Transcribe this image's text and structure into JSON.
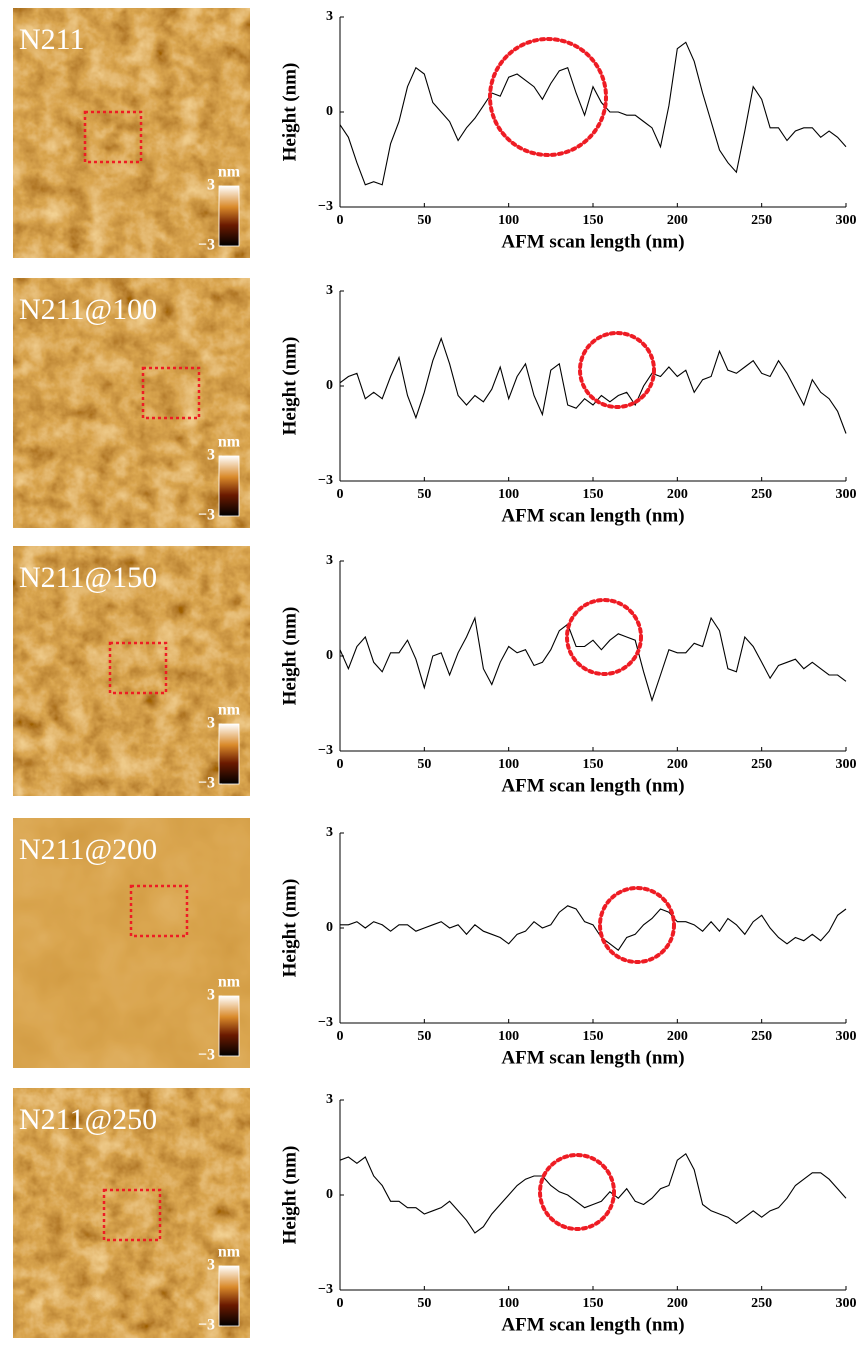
{
  "chart_data": [
    {
      "type": "line",
      "image_label": "N211",
      "colorbar_label": "nm",
      "colorbar_ticks": [
        3,
        {
          "value": -3,
          "label": "−3"
        }
      ],
      "xlabel": "AFM scan length (nm)",
      "ylabel": "Height (nm)",
      "xlim": [
        0,
        300
      ],
      "xticks": [
        0,
        50,
        100,
        150,
        200,
        250,
        300
      ],
      "ylim": [
        -3,
        3
      ],
      "yticks": [
        {
          "value": -3,
          "label": "−3"
        },
        0,
        3
      ],
      "color": "#000000",
      "x": [
        0,
        5,
        10,
        15,
        20,
        25,
        30,
        35,
        40,
        45,
        50,
        55,
        60,
        65,
        70,
        75,
        80,
        85,
        90,
        95,
        100,
        105,
        110,
        115,
        120,
        125,
        130,
        135,
        140,
        145,
        150,
        155,
        160,
        165,
        170,
        175,
        180,
        185,
        190,
        195,
        200,
        205,
        210,
        215,
        220,
        225,
        230,
        235,
        240,
        245,
        250,
        255,
        260,
        265,
        270,
        275,
        280,
        285,
        290,
        295,
        300
      ],
      "values": [
        -0.4,
        -0.8,
        -1.6,
        -2.3,
        -2.2,
        -2.3,
        -1.0,
        -0.3,
        0.8,
        1.4,
        1.2,
        0.3,
        0,
        -0.3,
        -0.9,
        -0.5,
        -0.2,
        0.2,
        0.6,
        0.5,
        1.1,
        1.2,
        1.0,
        0.8,
        0.4,
        0.9,
        1.3,
        1.4,
        0.6,
        -0.1,
        0.8,
        0.3,
        0.0,
        0.0,
        -0.1,
        -0.1,
        -0.3,
        -0.5,
        -1.1,
        0.2,
        2.0,
        2.2,
        1.6,
        0.6,
        -0.3,
        -1.2,
        -1.6,
        -1.9,
        -0.6,
        0.8,
        0.4,
        -0.5,
        -0.5,
        -0.9,
        -0.6,
        -0.5,
        -0.5,
        -0.8,
        -0.6,
        -0.8,
        -1.1
      ]
    },
    {
      "type": "line",
      "image_label": "N211@100",
      "colorbar_label": "nm",
      "colorbar_ticks": [
        3,
        {
          "value": -3,
          "label": "−3"
        }
      ],
      "xlabel": "AFM scan length (nm)",
      "ylabel": "Height (nm)",
      "xlim": [
        0,
        300
      ],
      "xticks": [
        0,
        50,
        100,
        150,
        200,
        250,
        300
      ],
      "ylim": [
        -3,
        3
      ],
      "yticks": [
        {
          "value": -3,
          "label": "−3"
        },
        0,
        3
      ],
      "color": "#000000",
      "x": [
        0,
        5,
        10,
        15,
        20,
        25,
        30,
        35,
        40,
        45,
        50,
        55,
        60,
        65,
        70,
        75,
        80,
        85,
        90,
        95,
        100,
        105,
        110,
        115,
        120,
        125,
        130,
        135,
        140,
        145,
        150,
        155,
        160,
        165,
        170,
        175,
        180,
        185,
        190,
        195,
        200,
        205,
        210,
        215,
        220,
        225,
        230,
        235,
        240,
        245,
        250,
        255,
        260,
        265,
        270,
        275,
        280,
        285,
        290,
        295,
        300
      ],
      "values": [
        0.1,
        0.3,
        0.4,
        -0.4,
        -0.2,
        -0.4,
        0.3,
        0.9,
        -0.3,
        -1.0,
        -0.2,
        0.8,
        1.5,
        0.7,
        -0.3,
        -0.6,
        -0.3,
        -0.5,
        -0.1,
        0.6,
        -0.4,
        0.3,
        0.7,
        -0.3,
        -0.9,
        0.5,
        0.7,
        -0.6,
        -0.7,
        -0.4,
        -0.6,
        -0.3,
        -0.5,
        -0.3,
        -0.2,
        -0.6,
        0.0,
        0.4,
        0.3,
        0.6,
        0.3,
        0.5,
        -0.2,
        0.2,
        0.3,
        1.1,
        0.5,
        0.4,
        0.6,
        0.8,
        0.4,
        0.3,
        0.8,
        0.4,
        -0.1,
        -0.6,
        0.2,
        -0.2,
        -0.4,
        -0.8,
        -1.5
      ]
    },
    {
      "type": "line",
      "image_label": "N211@150",
      "colorbar_label": "nm",
      "colorbar_ticks": [
        3,
        {
          "value": -3,
          "label": "−3"
        }
      ],
      "xlabel": "AFM scan length (nm)",
      "ylabel": "Height (nm)",
      "xlim": [
        0,
        300
      ],
      "xticks": [
        0,
        50,
        100,
        150,
        200,
        250,
        300
      ],
      "ylim": [
        -3,
        3
      ],
      "yticks": [
        {
          "value": -3,
          "label": "−3"
        },
        0,
        3
      ],
      "color": "#000000",
      "x": [
        0,
        5,
        10,
        15,
        20,
        25,
        30,
        35,
        40,
        45,
        50,
        55,
        60,
        65,
        70,
        75,
        80,
        85,
        90,
        95,
        100,
        105,
        110,
        115,
        120,
        125,
        130,
        135,
        140,
        145,
        150,
        155,
        160,
        165,
        170,
        175,
        180,
        185,
        190,
        195,
        200,
        205,
        210,
        215,
        220,
        225,
        230,
        235,
        240,
        245,
        250,
        255,
        260,
        265,
        270,
        275,
        280,
        285,
        290,
        295,
        300
      ],
      "values": [
        0.2,
        -0.4,
        0.3,
        0.6,
        -0.2,
        -0.5,
        0.1,
        0.1,
        0.5,
        -0.1,
        -1.0,
        0.0,
        0.1,
        -0.6,
        0.1,
        0.6,
        1.2,
        -0.4,
        -0.9,
        -0.2,
        0.3,
        0.1,
        0.2,
        -0.3,
        -0.2,
        0.2,
        0.8,
        1.0,
        0.3,
        0.3,
        0.5,
        0.2,
        0.5,
        0.7,
        0.6,
        0.5,
        -0.5,
        -1.4,
        -0.6,
        0.2,
        0.1,
        0.1,
        0.4,
        0.3,
        1.2,
        0.8,
        -0.4,
        -0.5,
        0.6,
        0.3,
        -0.2,
        -0.7,
        -0.3,
        -0.2,
        -0.1,
        -0.4,
        -0.2,
        -0.4,
        -0.6,
        -0.6,
        -0.8
      ]
    },
    {
      "type": "line",
      "image_label": "N211@200",
      "colorbar_label": "nm",
      "colorbar_ticks": [
        3,
        {
          "value": -3,
          "label": "−3"
        }
      ],
      "xlabel": "AFM scan length (nm)",
      "ylabel": "Height (nm)",
      "xlim": [
        0,
        300
      ],
      "xticks": [
        0,
        50,
        100,
        150,
        200,
        250,
        300
      ],
      "ylim": [
        -3,
        3
      ],
      "yticks": [
        {
          "value": -3,
          "label": "−3"
        },
        0,
        3
      ],
      "color": "#000000",
      "x": [
        0,
        5,
        10,
        15,
        20,
        25,
        30,
        35,
        40,
        45,
        50,
        55,
        60,
        65,
        70,
        75,
        80,
        85,
        90,
        95,
        100,
        105,
        110,
        115,
        120,
        125,
        130,
        135,
        140,
        145,
        150,
        155,
        160,
        165,
        170,
        175,
        180,
        185,
        190,
        195,
        200,
        205,
        210,
        215,
        220,
        225,
        230,
        235,
        240,
        245,
        250,
        255,
        260,
        265,
        270,
        275,
        280,
        285,
        290,
        295,
        300
      ],
      "values": [
        0.1,
        0.1,
        0.2,
        0.0,
        0.2,
        0.1,
        -0.1,
        0.1,
        0.1,
        -0.1,
        0.0,
        0.1,
        0.2,
        0.0,
        0.1,
        -0.2,
        0.1,
        -0.1,
        -0.2,
        -0.3,
        -0.5,
        -0.2,
        -0.1,
        0.2,
        0.0,
        0.1,
        0.5,
        0.7,
        0.6,
        0.2,
        0.1,
        -0.3,
        -0.5,
        -0.7,
        -0.3,
        -0.2,
        0.1,
        0.3,
        0.6,
        0.5,
        0.2,
        0.2,
        0.1,
        -0.1,
        0.2,
        -0.1,
        0.3,
        0.1,
        -0.2,
        0.2,
        0.4,
        0.0,
        -0.3,
        -0.5,
        -0.3,
        -0.4,
        -0.2,
        -0.4,
        -0.1,
        0.4,
        0.6
      ]
    },
    {
      "type": "line",
      "image_label": "N211@250",
      "colorbar_label": "nm",
      "colorbar_ticks": [
        3,
        {
          "value": -3,
          "label": "−3"
        }
      ],
      "xlabel": "AFM scan length (nm)",
      "ylabel": "Height (nm)",
      "xlim": [
        0,
        300
      ],
      "xticks": [
        0,
        50,
        100,
        150,
        200,
        250,
        300
      ],
      "ylim": [
        -3,
        3
      ],
      "yticks": [
        {
          "value": -3,
          "label": "−3"
        },
        0,
        3
      ],
      "color": "#000000",
      "x": [
        0,
        5,
        10,
        15,
        20,
        25,
        30,
        35,
        40,
        45,
        50,
        55,
        60,
        65,
        70,
        75,
        80,
        85,
        90,
        95,
        100,
        105,
        110,
        115,
        120,
        125,
        130,
        135,
        140,
        145,
        150,
        155,
        160,
        165,
        170,
        175,
        180,
        185,
        190,
        195,
        200,
        205,
        210,
        215,
        220,
        225,
        230,
        235,
        240,
        245,
        250,
        255,
        260,
        265,
        270,
        275,
        280,
        285,
        290,
        295,
        300
      ],
      "values": [
        1.1,
        1.2,
        1.0,
        1.2,
        0.6,
        0.3,
        -0.2,
        -0.2,
        -0.4,
        -0.4,
        -0.6,
        -0.5,
        -0.4,
        -0.2,
        -0.5,
        -0.8,
        -1.2,
        -1.0,
        -0.6,
        -0.3,
        0.0,
        0.3,
        0.5,
        0.6,
        0.6,
        0.3,
        0.1,
        0.0,
        -0.2,
        -0.4,
        -0.3,
        -0.2,
        0.1,
        -0.1,
        0.2,
        -0.2,
        -0.3,
        -0.1,
        0.2,
        0.3,
        1.1,
        1.3,
        0.8,
        -0.3,
        -0.5,
        -0.6,
        -0.7,
        -0.9,
        -0.7,
        -0.5,
        -0.7,
        -0.5,
        -0.4,
        -0.1,
        0.3,
        0.5,
        0.7,
        0.7,
        0.5,
        0.2,
        -0.1
      ]
    }
  ]
}
